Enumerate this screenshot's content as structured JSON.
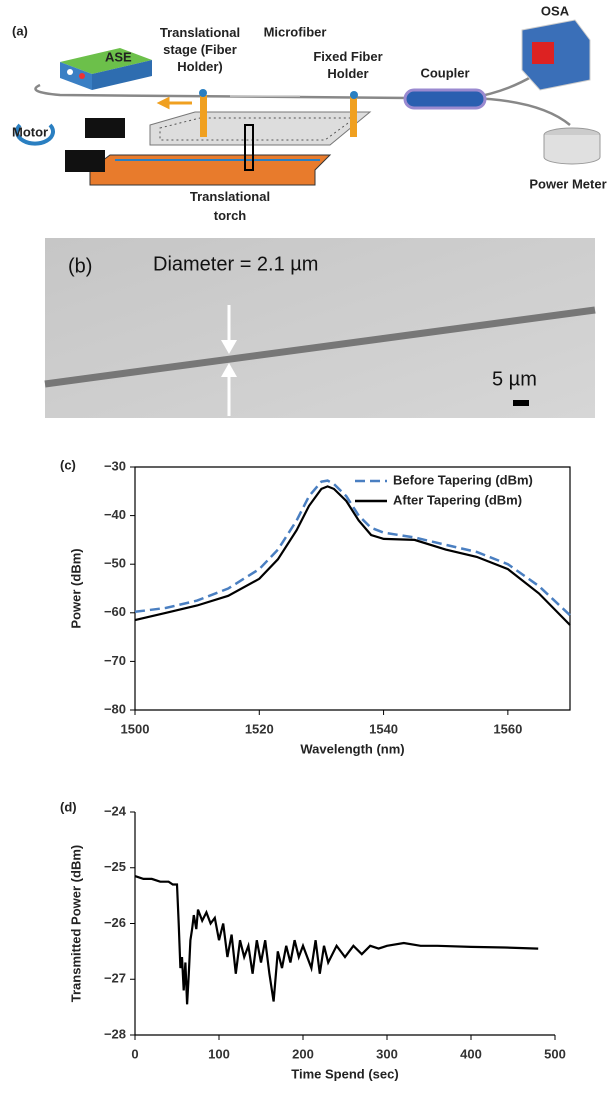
{
  "diagram": {
    "label": "(a)",
    "ase": "ASE",
    "stage_lines": [
      "Translational",
      "stage (Fiber",
      "Holder)"
    ],
    "microfiber": "Microfiber",
    "fixed_lines": [
      "Fixed Fiber",
      "Holder"
    ],
    "coupler": "Coupler",
    "osa": "OSA",
    "power_meter": "Power Meter",
    "motor": "Motor",
    "torch_lines": [
      "Translational",
      "torch"
    ]
  },
  "micrograph": {
    "label": "(b)",
    "diameter": "Diameter = 2.1 µm",
    "scale": "5 µm"
  },
  "chart_data": [
    {
      "type": "line",
      "label": "(c)",
      "xlabel": "Wavelength (nm)",
      "ylabel": "Power (dBm)",
      "xlim": [
        1500,
        1570
      ],
      "ylim": [
        -80,
        -30
      ],
      "xticks": [
        1500,
        1520,
        1540,
        1560
      ],
      "yticks": [
        {
          "value": -80,
          "label": "−80"
        },
        {
          "value": -70,
          "label": "−70"
        },
        {
          "value": -60,
          "label": "−60"
        },
        {
          "value": -50,
          "label": "−50"
        },
        {
          "value": -40,
          "label": "−40"
        },
        {
          "value": -30,
          "label": "−30"
        }
      ],
      "frame": true,
      "legend": "upper right",
      "x": [
        1500,
        1505,
        1510,
        1515,
        1520,
        1523,
        1526,
        1528,
        1530,
        1531,
        1532,
        1534,
        1536,
        1538,
        1540,
        1545,
        1550,
        1555,
        1560,
        1565,
        1570
      ],
      "series": [
        {
          "name": "Before Tapering (dBm)",
          "color": "#4a7fc1",
          "dash": true,
          "values": [
            -59.8,
            -59,
            -57.5,
            -55,
            -51,
            -47,
            -41,
            -36,
            -33,
            -32.8,
            -33.5,
            -36,
            -40,
            -42.5,
            -43.5,
            -44.5,
            -46,
            -47.5,
            -50,
            -54.5,
            -60.5
          ]
        },
        {
          "name": "After Tapering (dBm)",
          "color": "#000000",
          "dash": false,
          "values": [
            -61.5,
            -60,
            -58.5,
            -56.5,
            -53,
            -49,
            -43,
            -38,
            -34.5,
            -34,
            -34.5,
            -37,
            -41,
            -44,
            -44.8,
            -45,
            -47,
            -48.5,
            -51,
            -56,
            -62.5
          ]
        }
      ]
    },
    {
      "type": "line",
      "label": "(d)",
      "xlabel": "Time Spend (sec)",
      "ylabel": "Transmitted Power (dBm)",
      "xlim": [
        0,
        500
      ],
      "ylim": [
        -28,
        -24
      ],
      "xticks": [
        0,
        100,
        200,
        300,
        400,
        500
      ],
      "yticks": [
        {
          "value": -28,
          "label": "−28"
        },
        {
          "value": -27,
          "label": "−27"
        },
        {
          "value": -26,
          "label": "−26"
        },
        {
          "value": -25,
          "label": "−25"
        },
        {
          "value": -24,
          "label": "−24"
        }
      ],
      "frame": false,
      "x": [
        0,
        10,
        20,
        30,
        40,
        45,
        50,
        52,
        54,
        56,
        58,
        60,
        62,
        64,
        66,
        68,
        70,
        73,
        75,
        80,
        85,
        90,
        95,
        100,
        105,
        110,
        115,
        120,
        125,
        130,
        135,
        140,
        145,
        150,
        155,
        160,
        165,
        170,
        175,
        180,
        185,
        190,
        195,
        200,
        210,
        215,
        220,
        225,
        230,
        240,
        250,
        260,
        270,
        280,
        290,
        300,
        320,
        340,
        360,
        400,
        440,
        480
      ],
      "series": [
        {
          "color": "#000000",
          "dash": false,
          "values": [
            -25.15,
            -25.2,
            -25.2,
            -25.25,
            -25.25,
            -25.3,
            -25.3,
            -26.0,
            -26.8,
            -26.6,
            -27.2,
            -26.7,
            -27.45,
            -26.9,
            -26.3,
            -26.1,
            -25.85,
            -26.1,
            -25.75,
            -25.95,
            -25.8,
            -26.0,
            -25.9,
            -26.3,
            -26.0,
            -26.6,
            -26.2,
            -26.9,
            -26.3,
            -26.6,
            -26.4,
            -26.9,
            -26.3,
            -26.7,
            -26.3,
            -26.9,
            -27.4,
            -26.5,
            -26.8,
            -26.4,
            -26.7,
            -26.3,
            -26.6,
            -26.4,
            -26.8,
            -26.3,
            -26.9,
            -26.4,
            -26.7,
            -26.4,
            -26.6,
            -26.4,
            -26.55,
            -26.4,
            -26.45,
            -26.4,
            -26.35,
            -26.4,
            -26.4,
            -26.42,
            -26.43,
            -26.45
          ]
        }
      ]
    }
  ]
}
